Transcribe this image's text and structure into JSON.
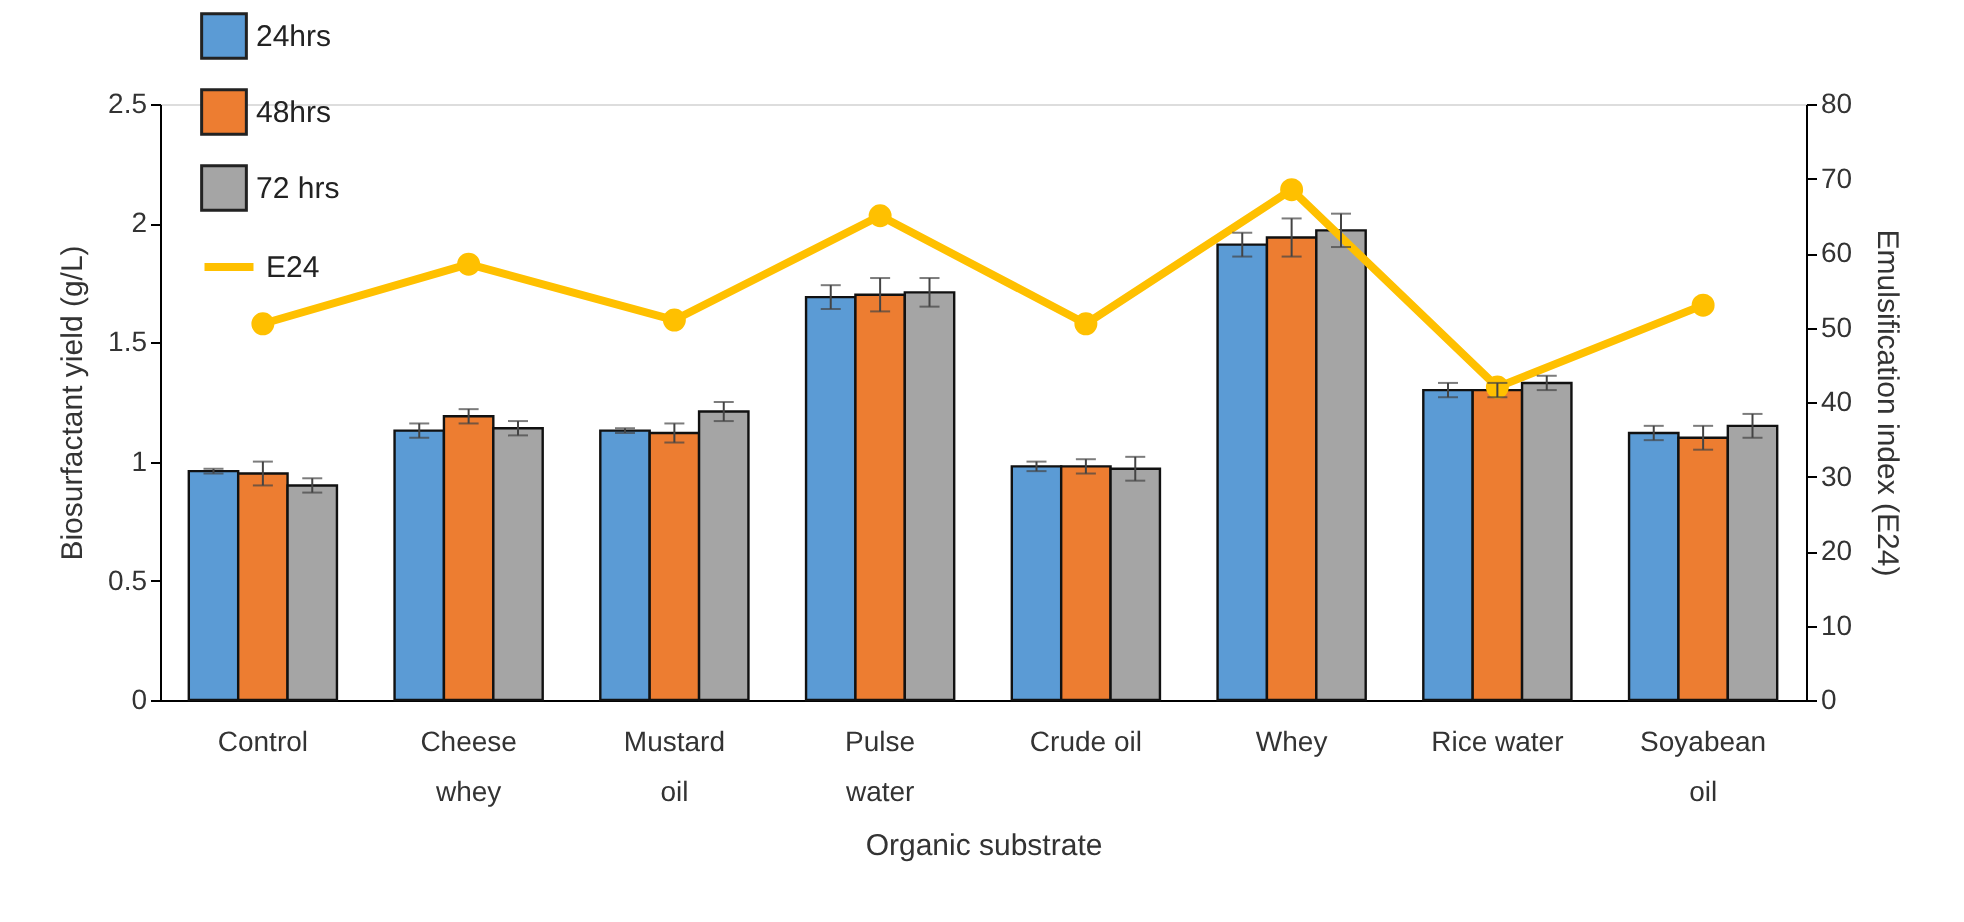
{
  "chart_data": {
    "type": "bar",
    "xlabel": "Organic substrate",
    "ylabel": "Biosurfactant yield (g/L)",
    "y2label": "Emulsification index (E24)",
    "categories": [
      "Control",
      "Cheese\nwhey",
      "Mustard\noil",
      "Pulse\nwater",
      "Crude oil",
      "Whey",
      "Rice water",
      "Soyabean\noil"
    ],
    "series": [
      {
        "name": "24hrs",
        "type": "bar",
        "color": "#5b9bd5",
        "values": [
          0.96,
          1.13,
          1.13,
          1.69,
          0.98,
          1.91,
          1.3,
          1.12
        ],
        "errors": [
          0.01,
          0.03,
          0.01,
          0.05,
          0.02,
          0.05,
          0.03,
          0.03
        ]
      },
      {
        "name": "48hrs",
        "type": "bar",
        "color": "#ed7d31",
        "values": [
          0.95,
          1.19,
          1.12,
          1.7,
          0.98,
          1.94,
          1.3,
          1.1
        ],
        "errors": [
          0.05,
          0.03,
          0.04,
          0.07,
          0.03,
          0.08,
          0.03,
          0.05
        ]
      },
      {
        "name": "72 hrs",
        "type": "bar",
        "color": "#a5a5a5",
        "values": [
          0.9,
          1.14,
          1.21,
          1.71,
          0.97,
          1.97,
          1.33,
          1.15
        ],
        "errors": [
          0.03,
          0.03,
          0.04,
          0.06,
          0.05,
          0.07,
          0.03,
          0.05
        ]
      },
      {
        "name": "E24",
        "type": "line",
        "axis": "y2",
        "color": "#ffc000",
        "marker": "circle",
        "values": [
          50.5,
          58.5,
          51,
          65,
          50.5,
          68.5,
          42,
          53
        ]
      }
    ],
    "ylim": [
      0,
      2.5
    ],
    "yticks": [
      0,
      0.5,
      1,
      1.5,
      2,
      2.5
    ],
    "y2lim": [
      0,
      80
    ],
    "y2ticks": [
      0,
      10,
      20,
      30,
      40,
      50,
      60,
      70,
      80
    ],
    "grid": false,
    "legend": "top left"
  }
}
